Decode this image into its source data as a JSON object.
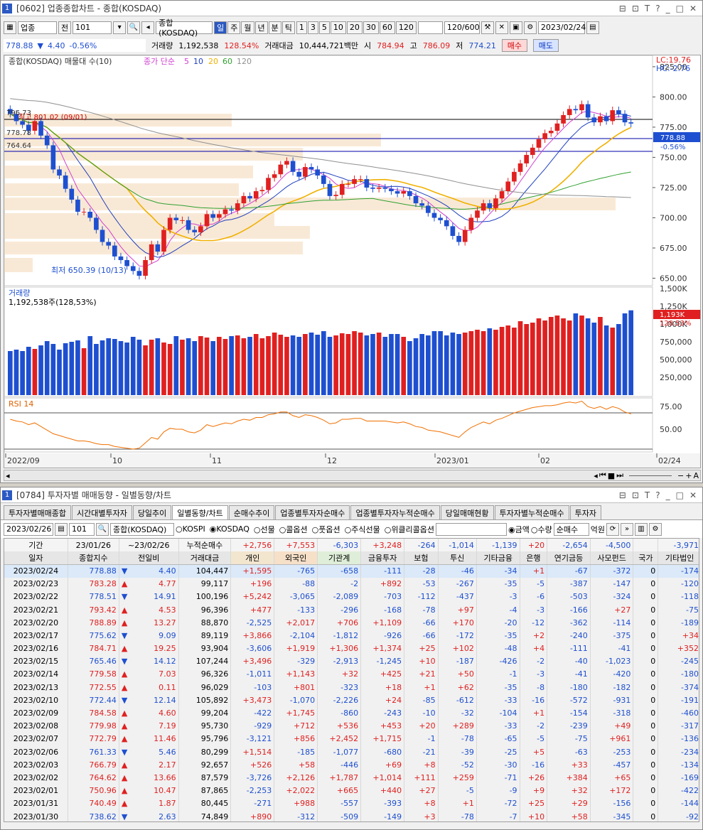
{
  "chart_win": {
    "title": "[0602] 업종종합차트 - 종합(KOSDAQ)",
    "win_no": "1",
    "toolbar": {
      "sector": "업종",
      "jeon": "전",
      "code": "101",
      "name": "종합(KOSDAQ)",
      "periods": [
        "일",
        "주",
        "월",
        "년",
        "분",
        "틱"
      ],
      "minutes": [
        "1",
        "3",
        "5",
        "10",
        "20",
        "30",
        "60",
        "120"
      ],
      "count": "120/600",
      "date": "2023/02/24"
    },
    "quote": {
      "price": "778.88",
      "arrow": "▼",
      "change": "4.40",
      "pct": "-0.56%",
      "vol_label": "거래량",
      "vol": "1,192,538",
      "vol_pct": "128.54%",
      "amt_label": "거래대금",
      "amt": "10,444,721백만",
      "open_label": "시",
      "open": "784.94",
      "high_label": "고",
      "high": "786.09",
      "low_label": "저",
      "low": "774.21",
      "buy": "매수",
      "sell": "매도"
    }
  },
  "chart": {
    "legend": "종합(KOSDAQ) 매물대 수(10)",
    "ma_label": "종가 단순",
    "ma": [
      "5",
      "10",
      "20",
      "60",
      "120"
    ],
    "lc": "LC:19.76",
    "hc": "HC:-2.76",
    "price_ticks": [
      "825.00",
      "800.00",
      "775.00",
      "750.00",
      "725.00",
      "700.00",
      "675.00",
      "650.00"
    ],
    "price_tag": "778.88",
    "pct_tag": "-0.56%",
    "hi_label": "최고 801.02 (09/01)",
    "lo_label": "최저 650.39 (10/13)",
    "left_lbls": [
      "796.73",
      "778.78",
      "764.64"
    ],
    "vol_title": "거래량",
    "vol_val": "1,192,538주(128,53%)",
    "vol_ticks": [
      "1,500K",
      "1,250K",
      "1,000K",
      "750,000",
      "500,000",
      "250,000"
    ],
    "vol_tag": "1,193K",
    "vol_pct_tag": "128.53%",
    "rsi_title": "RSI 14",
    "rsi_ticks": [
      "75.00",
      "50.00"
    ],
    "xlabels": [
      "2022/09",
      "10",
      "11",
      "12",
      "2023/01",
      "02",
      "02/24"
    ]
  },
  "chart_data": {
    "type": "candlestick",
    "close": [
      786,
      780,
      777,
      772,
      780,
      768,
      760,
      740,
      735,
      724,
      715,
      705,
      705,
      700,
      690,
      680,
      677,
      668,
      665,
      660,
      656,
      652,
      665,
      678,
      672,
      690,
      700,
      698,
      698,
      690,
      688,
      693,
      703,
      700,
      703,
      707,
      706,
      712,
      718,
      716,
      722,
      723,
      733,
      736,
      744,
      747,
      738,
      734,
      742,
      740,
      735,
      728,
      718,
      719,
      728,
      728,
      732,
      732,
      725,
      724,
      725,
      724,
      722,
      720,
      722,
      718,
      712,
      710,
      704,
      700,
      698,
      693,
      685,
      680,
      690,
      700,
      706,
      712,
      708,
      716,
      722,
      730,
      738,
      745,
      752,
      758,
      765,
      770,
      772,
      778,
      785,
      790,
      789,
      794,
      783,
      779,
      784,
      780,
      789,
      786,
      779,
      778
    ],
    "rsi": [
      58,
      56,
      55,
      52,
      54,
      50,
      46,
      42,
      40,
      38,
      36,
      34,
      34,
      33,
      31,
      30,
      30,
      28,
      27,
      26,
      25,
      26,
      32,
      38,
      36,
      44,
      48,
      47,
      47,
      44,
      43,
      46,
      52,
      50,
      52,
      54,
      53,
      56,
      58,
      57,
      60,
      60,
      63,
      64,
      66,
      66,
      62,
      60,
      63,
      62,
      60,
      57,
      53,
      54,
      58,
      58,
      59,
      59,
      56,
      56,
      56,
      56,
      55,
      54,
      55,
      53,
      50,
      49,
      46,
      45,
      44,
      42,
      40,
      38,
      44,
      49,
      52,
      55,
      53,
      57,
      59,
      62,
      65,
      67,
      69,
      71,
      72,
      73,
      73,
      74,
      76,
      77,
      76,
      78,
      72,
      70,
      72,
      69,
      72,
      70,
      66,
      64
    ],
    "volume": [
      620,
      640,
      620,
      680,
      650,
      700,
      760,
      720,
      640,
      730,
      750,
      770,
      660,
      830,
      720,
      770,
      800,
      790,
      760,
      740,
      820,
      780,
      700,
      780,
      800,
      740,
      720,
      830,
      780,
      800,
      760,
      830,
      810,
      760,
      820,
      790,
      830,
      840,
      800,
      820,
      860,
      800,
      830,
      880,
      850,
      820,
      840,
      820,
      860,
      880,
      850,
      900,
      820,
      840,
      870,
      860,
      900,
      880,
      840,
      860,
      880,
      820,
      860,
      860,
      820,
      760,
      800,
      860,
      840,
      900,
      900,
      840,
      880,
      860,
      880,
      900,
      920,
      900,
      940,
      920,
      960,
      980,
      950,
      1040,
      1000,
      1020,
      1080,
      1050,
      1100,
      1120,
      1080,
      1050,
      1150,
      1120,
      1080,
      1020,
      1100,
      980,
      950,
      1000,
      1150,
      1193
    ],
    "ylim": [
      645,
      832
    ]
  },
  "flow_win": {
    "title": "[0784] 투자자별 매매동향 - 일별동향/차트",
    "win_no": "1",
    "tabs": [
      "투자자별매매종합",
      "시간대별투자자",
      "당일추이",
      "일별동향/차트",
      "순매수추이",
      "업종별투자자순매수",
      "업종별투자자누적순매수",
      "당일매매현황",
      "투자자별누적순매수",
      "투자자"
    ],
    "date": "2023/02/26",
    "code": "101",
    "name": "종합(KOSDAQ)",
    "radios": [
      "KOSPI",
      "KOSDAQ",
      "선물",
      "콜옵션",
      "풋옵션",
      "주식선물",
      "위클리콜옵션"
    ],
    "unit_radios": [
      "금액",
      "수량"
    ],
    "mode": "순매수",
    "unit": "억원",
    "period_label": "기간",
    "from": "23/01/26",
    "to": "23/02/26",
    "cum_label": "누적순매수",
    "cum": [
      "+2,756",
      "+7,553",
      "-6,303",
      "+3,248",
      "-264",
      "-1,014",
      "-1,139",
      "+20",
      "-2,654",
      "-4,500",
      "",
      "-3,971"
    ],
    "headers": [
      "일자",
      "종합지수",
      "전일비",
      "거래대금",
      "개인",
      "외국인",
      "기관계",
      "금융투자",
      "보험",
      "투신",
      "기타금융",
      "은행",
      "연기금등",
      "사모펀드",
      "국가",
      "기타법인"
    ],
    "rows": [
      [
        "2023/02/24",
        "778.88",
        "▼",
        "4.40",
        "104,447",
        "+1,595",
        "-765",
        "-658",
        "-111",
        "-28",
        "-46",
        "-34",
        "+1",
        "-67",
        "-372",
        "0",
        "-174"
      ],
      [
        "2023/02/23",
        "783.28",
        "▲",
        "4.77",
        "99,117",
        "+196",
        "-88",
        "-2",
        "+892",
        "-53",
        "-267",
        "-35",
        "-5",
        "-387",
        "-147",
        "0",
        "-120"
      ],
      [
        "2023/02/22",
        "778.51",
        "▼",
        "14.91",
        "100,196",
        "+5,242",
        "-3,065",
        "-2,089",
        "-703",
        "-112",
        "-437",
        "-3",
        "-6",
        "-503",
        "-324",
        "0",
        "-118"
      ],
      [
        "2023/02/21",
        "793.42",
        "▲",
        "4.53",
        "96,396",
        "+477",
        "-133",
        "-296",
        "-168",
        "-78",
        "+97",
        "-4",
        "-3",
        "-166",
        "+27",
        "0",
        "-75"
      ],
      [
        "2023/02/20",
        "788.89",
        "▲",
        "13.27",
        "88,870",
        "-2,525",
        "+2,017",
        "+706",
        "+1,109",
        "-66",
        "+170",
        "-20",
        "-12",
        "-362",
        "-114",
        "0",
        "-189"
      ],
      [
        "2023/02/17",
        "775.62",
        "▼",
        "9.09",
        "89,119",
        "+3,866",
        "-2,104",
        "-1,812",
        "-926",
        "-66",
        "-172",
        "-35",
        "+2",
        "-240",
        "-375",
        "0",
        "+34"
      ],
      [
        "2023/02/16",
        "784.71",
        "▲",
        "19.25",
        "93,904",
        "-3,606",
        "+1,919",
        "+1,306",
        "+1,374",
        "+25",
        "+102",
        "-48",
        "+4",
        "-111",
        "-41",
        "0",
        "+352"
      ],
      [
        "2023/02/15",
        "765.46",
        "▼",
        "14.12",
        "107,244",
        "+3,496",
        "-329",
        "-2,913",
        "-1,245",
        "+10",
        "-187",
        "-426",
        "-2",
        "-40",
        "-1,023",
        "0",
        "-245"
      ],
      [
        "2023/02/14",
        "779.58",
        "▲",
        "7.03",
        "96,326",
        "-1,011",
        "+1,143",
        "+32",
        "+425",
        "+21",
        "+50",
        "-1",
        "-3",
        "-41",
        "-420",
        "0",
        "-180"
      ],
      [
        "2023/02/13",
        "772.55",
        "▲",
        "0.11",
        "96,029",
        "-103",
        "+801",
        "-323",
        "+18",
        "+1",
        "+62",
        "-35",
        "-8",
        "-180",
        "-182",
        "0",
        "-374"
      ],
      [
        "2023/02/10",
        "772.44",
        "▼",
        "12.14",
        "105,892",
        "+3,473",
        "-1,070",
        "-2,226",
        "+24",
        "-85",
        "-612",
        "-33",
        "-16",
        "-572",
        "-931",
        "0",
        "-191"
      ],
      [
        "2023/02/09",
        "784.58",
        "▲",
        "4.60",
        "99,204",
        "-422",
        "+1,745",
        "-860",
        "-243",
        "-10",
        "-32",
        "-104",
        "+1",
        "-154",
        "-318",
        "0",
        "-460"
      ],
      [
        "2023/02/08",
        "779.98",
        "▲",
        "7.19",
        "95,730",
        "-929",
        "+712",
        "+536",
        "+453",
        "+20",
        "+289",
        "-33",
        "-2",
        "-239",
        "+49",
        "0",
        "-317"
      ],
      [
        "2023/02/07",
        "772.79",
        "▲",
        "11.46",
        "95,796",
        "-3,121",
        "+856",
        "+2,452",
        "+1,715",
        "-1",
        "-78",
        "-65",
        "-5",
        "-75",
        "+961",
        "0",
        "-136"
      ],
      [
        "2023/02/06",
        "761.33",
        "▼",
        "5.46",
        "80,299",
        "+1,514",
        "-185",
        "-1,077",
        "-680",
        "-21",
        "-39",
        "-25",
        "+5",
        "-63",
        "-253",
        "0",
        "-234"
      ],
      [
        "2023/02/03",
        "766.79",
        "▲",
        "2.17",
        "92,657",
        "+526",
        "+58",
        "-446",
        "+69",
        "+8",
        "-52",
        "-30",
        "-16",
        "+33",
        "-457",
        "0",
        "-134"
      ],
      [
        "2023/02/02",
        "764.62",
        "▲",
        "13.66",
        "87,579",
        "-3,726",
        "+2,126",
        "+1,787",
        "+1,014",
        "+111",
        "+259",
        "-71",
        "+26",
        "+384",
        "+65",
        "0",
        "-169"
      ],
      [
        "2023/02/01",
        "750.96",
        "▲",
        "10.47",
        "87,865",
        "-2,253",
        "+2,022",
        "+665",
        "+440",
        "+27",
        "-5",
        "-9",
        "+9",
        "+32",
        "+172",
        "0",
        "-422"
      ],
      [
        "2023/01/31",
        "740.49",
        "▲",
        "1.87",
        "80,445",
        "-271",
        "+988",
        "-557",
        "-393",
        "+8",
        "+1",
        "-72",
        "+25",
        "+29",
        "-156",
        "0",
        "-144"
      ],
      [
        "2023/01/30",
        "738.62",
        "▼",
        "2.63",
        "74,849",
        "+890",
        "-312",
        "-509",
        "-149",
        "+3",
        "-78",
        "-7",
        "+10",
        "+58",
        "-345",
        "0",
        "-92"
      ]
    ]
  },
  "colors": {
    "up": "#e02020",
    "down": "#1e4fd0",
    "ma5": "#d040d0",
    "ma10": "#2040c0",
    "ma20": "#f0b000",
    "ma60": "#30a030",
    "ma120": "#909090",
    "rsi": "#f07000"
  }
}
